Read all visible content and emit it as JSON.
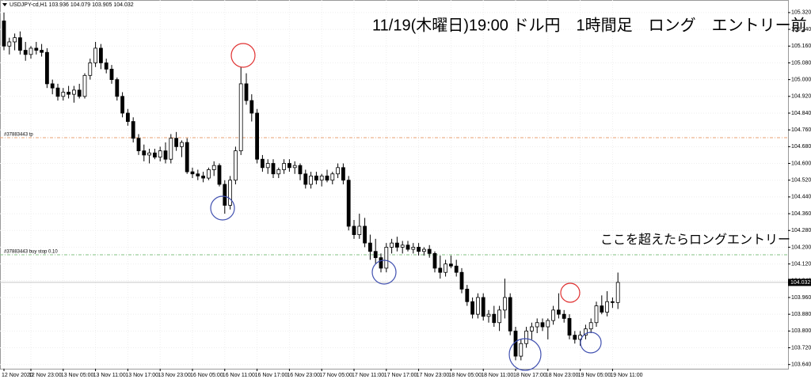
{
  "chart_data": {
    "type": "candlestick",
    "title": "11/19(木曜日)19:00 ドル円　1時間足　ロング　エントリー前",
    "annotation": "ここを超えたらロングエントリー",
    "symbol": "USDJPY-cd,H1",
    "ylim": [
      103.62,
      105.38
    ],
    "yticks": [
      {
        "value": 105.32,
        "label": "105.320"
      },
      {
        "value": 105.24,
        "label": "105.240"
      },
      {
        "value": 105.16,
        "label": "105.160"
      },
      {
        "value": 105.08,
        "label": "105.080"
      },
      {
        "value": 105.0,
        "label": "105.000"
      },
      {
        "value": 104.92,
        "label": "104.920"
      },
      {
        "value": 104.84,
        "label": "104.840"
      },
      {
        "value": 104.76,
        "label": "104.760"
      },
      {
        "value": 104.68,
        "label": "104.680"
      },
      {
        "value": 104.6,
        "label": "104.600"
      },
      {
        "value": 104.52,
        "label": "104.520"
      },
      {
        "value": 104.44,
        "label": "104.440"
      },
      {
        "value": 104.36,
        "label": "104.360"
      },
      {
        "value": 104.28,
        "label": "104.280"
      },
      {
        "value": 104.2,
        "label": "104.200"
      },
      {
        "value": 104.12,
        "label": "104.120"
      },
      {
        "value": 104.04,
        "label": "104.040"
      },
      {
        "value": 103.96,
        "label": "103.960"
      },
      {
        "value": 103.88,
        "label": "103.880"
      },
      {
        "value": 103.8,
        "label": "103.800"
      },
      {
        "value": 103.72,
        "label": "103.720"
      },
      {
        "value": 103.64,
        "label": "103.640"
      }
    ],
    "xticks": [
      {
        "value": 0,
        "label": "12 Nov 2020"
      },
      {
        "value": 5,
        "label": "12 Nov 23:00"
      },
      {
        "value": 11,
        "label": "13 Nov 05:00"
      },
      {
        "value": 17,
        "label": "13 Nov 11:00"
      },
      {
        "value": 23,
        "label": "13 Nov 17:00"
      },
      {
        "value": 29,
        "label": "13 Nov 23:00"
      },
      {
        "value": 35,
        "label": "16 Nov 05:00"
      },
      {
        "value": 41,
        "label": "16 Nov 11:00"
      },
      {
        "value": 47,
        "label": "16 Nov 17:00"
      },
      {
        "value": 53,
        "label": "16 Nov 23:00"
      },
      {
        "value": 59,
        "label": "17 Nov 05:00"
      },
      {
        "value": 65,
        "label": "17 Nov 11:00"
      },
      {
        "value": 71,
        "label": "17 Nov 17:00"
      },
      {
        "value": 77,
        "label": "17 Nov 23:00"
      },
      {
        "value": 83,
        "label": "18 Nov 05:00"
      },
      {
        "value": 89,
        "label": "18 Nov 11:00"
      },
      {
        "value": 95,
        "label": "18 Nov 17:00"
      },
      {
        "value": 101,
        "label": "18 Nov 23:00"
      },
      {
        "value": 107,
        "label": "19 Nov 05:00"
      },
      {
        "value": 113,
        "label": "19 Nov 11:00"
      }
    ],
    "grid": true,
    "up_color": "#ffffff",
    "down_color": "#000000",
    "lines": [
      {
        "label": "#37883443 tp",
        "value": 104.723,
        "color": "#e8a070"
      },
      {
        "label": "#37883443 buy stop 0.10",
        "value": 104.164,
        "color": "#80c080"
      }
    ],
    "open": [
      105.28,
      105.16,
      105.18,
      105.2,
      105.14,
      105.12,
      105.15,
      105.14,
      105.13,
      104.98,
      104.96,
      104.92,
      104.94,
      104.93,
      104.95,
      104.92,
      105.02,
      105.08,
      105.15,
      105.08,
      105.05,
      105.0,
      104.92,
      104.84,
      104.8,
      104.72,
      104.66,
      104.64,
      104.65,
      104.63,
      104.66,
      104.62,
      104.72,
      104.68,
      104.7,
      104.56,
      104.55,
      104.54,
      104.53,
      104.57,
      104.59,
      104.5,
      104.4,
      104.52,
      104.66,
      104.98,
      104.9,
      104.84,
      104.62,
      104.58,
      104.6,
      104.55,
      104.57,
      104.6,
      104.58,
      104.59,
      104.55,
      104.5,
      104.54,
      104.52,
      104.54,
      104.52,
      104.55,
      104.58,
      104.52,
      104.3,
      104.26,
      104.3,
      104.22,
      104.18,
      104.15,
      104.1,
      104.2,
      104.22,
      104.2,
      104.21,
      104.19,
      104.2,
      104.18,
      104.19,
      104.17,
      104.1,
      104.08,
      104.12,
      104.11,
      104.08,
      104.0,
      103.94,
      103.88,
      103.96,
      103.87,
      103.88,
      103.84,
      103.9,
      103.96,
      103.8,
      103.68,
      103.74,
      103.8,
      103.82,
      103.84,
      103.82,
      103.85,
      103.9,
      103.88,
      103.86,
      103.78,
      103.76,
      103.78,
      103.81,
      103.84,
      103.92,
      103.89,
      103.94,
      103.936
    ],
    "high": [
      105.32,
      105.2,
      105.22,
      105.23,
      105.18,
      105.16,
      105.18,
      105.17,
      105.15,
      105.0,
      104.98,
      104.96,
      104.97,
      104.97,
      104.98,
      105.03,
      105.1,
      105.18,
      105.17,
      105.1,
      105.07,
      105.01,
      104.94,
      104.86,
      104.82,
      104.74,
      104.69,
      104.67,
      104.67,
      104.68,
      104.7,
      104.74,
      104.75,
      104.71,
      104.72,
      104.58,
      104.57,
      104.56,
      104.58,
      104.61,
      104.6,
      104.52,
      104.54,
      104.68,
      105.06,
      105.03,
      104.93,
      104.86,
      104.64,
      104.62,
      104.62,
      104.58,
      104.62,
      104.62,
      104.61,
      104.6,
      104.57,
      104.56,
      104.56,
      104.55,
      104.57,
      104.56,
      104.6,
      104.6,
      104.54,
      104.33,
      104.36,
      104.34,
      104.26,
      104.24,
      104.17,
      104.22,
      104.24,
      104.25,
      104.23,
      104.23,
      104.22,
      104.22,
      104.2,
      104.21,
      104.18,
      104.16,
      104.14,
      104.16,
      104.14,
      104.1,
      104.02,
      103.96,
      103.98,
      103.98,
      103.9,
      103.92,
      103.92,
      104.05,
      103.98,
      103.82,
      103.76,
      103.82,
      103.84,
      103.86,
      103.86,
      103.86,
      103.92,
      103.98,
      103.9,
      103.88,
      103.8,
      103.8,
      103.83,
      103.86,
      103.94,
      103.97,
      103.99,
      103.96,
      104.079
    ],
    "low": [
      105.14,
      105.12,
      105.14,
      105.12,
      105.09,
      105.1,
      105.12,
      105.11,
      104.96,
      104.93,
      104.9,
      104.9,
      104.91,
      104.89,
      104.91,
      104.91,
      105.0,
      105.06,
      105.05,
      105.03,
      104.98,
      104.9,
      104.82,
      104.78,
      104.7,
      104.64,
      104.61,
      104.6,
      104.62,
      104.61,
      104.6,
      104.6,
      104.66,
      104.63,
      104.55,
      104.53,
      104.52,
      104.51,
      104.52,
      104.54,
      104.49,
      104.36,
      104.38,
      104.5,
      104.64,
      104.88,
      104.8,
      104.6,
      104.56,
      104.55,
      104.53,
      104.53,
      104.55,
      104.56,
      104.55,
      104.52,
      104.48,
      104.48,
      104.5,
      104.49,
      104.51,
      104.5,
      104.53,
      104.5,
      104.28,
      104.24,
      104.24,
      104.2,
      104.14,
      104.12,
      104.08,
      104.08,
      104.17,
      104.18,
      104.17,
      104.18,
      104.17,
      104.16,
      104.16,
      104.15,
      104.08,
      104.05,
      104.06,
      104.1,
      104.06,
      103.98,
      103.92,
      103.86,
      103.86,
      103.85,
      103.84,
      103.82,
      103.8,
      103.86,
      103.78,
      103.66,
      103.66,
      103.72,
      103.76,
      103.79,
      103.8,
      103.76,
      103.83,
      103.86,
      103.84,
      103.76,
      103.74,
      103.73,
      103.76,
      103.79,
      103.82,
      103.88,
      103.87,
      103.91,
      103.905
    ],
    "close": [
      105.16,
      105.18,
      105.2,
      105.14,
      105.12,
      105.15,
      105.14,
      105.13,
      104.98,
      104.96,
      104.92,
      104.94,
      104.93,
      104.95,
      104.92,
      105.02,
      105.08,
      105.15,
      105.08,
      105.05,
      105.0,
      104.92,
      104.84,
      104.8,
      104.72,
      104.66,
      104.64,
      104.65,
      104.63,
      104.66,
      104.62,
      104.72,
      104.68,
      104.7,
      104.56,
      104.55,
      104.54,
      104.53,
      104.57,
      104.59,
      104.5,
      104.4,
      104.52,
      104.66,
      104.98,
      104.9,
      104.84,
      104.62,
      104.58,
      104.6,
      104.55,
      104.57,
      104.6,
      104.58,
      104.59,
      104.55,
      104.5,
      104.54,
      104.52,
      104.54,
      104.52,
      104.55,
      104.58,
      104.52,
      104.3,
      104.26,
      104.3,
      104.22,
      104.18,
      104.15,
      104.1,
      104.2,
      104.22,
      104.2,
      104.21,
      104.19,
      104.2,
      104.18,
      104.19,
      104.17,
      104.1,
      104.08,
      104.12,
      104.11,
      104.08,
      104.0,
      103.94,
      103.88,
      103.96,
      103.87,
      103.88,
      103.84,
      103.9,
      103.96,
      103.8,
      103.68,
      103.74,
      103.8,
      103.82,
      103.84,
      103.82,
      103.85,
      103.9,
      103.88,
      103.86,
      103.78,
      103.76,
      103.78,
      103.81,
      103.84,
      103.92,
      103.89,
      103.94,
      103.936,
      104.032
    ]
  }
}
